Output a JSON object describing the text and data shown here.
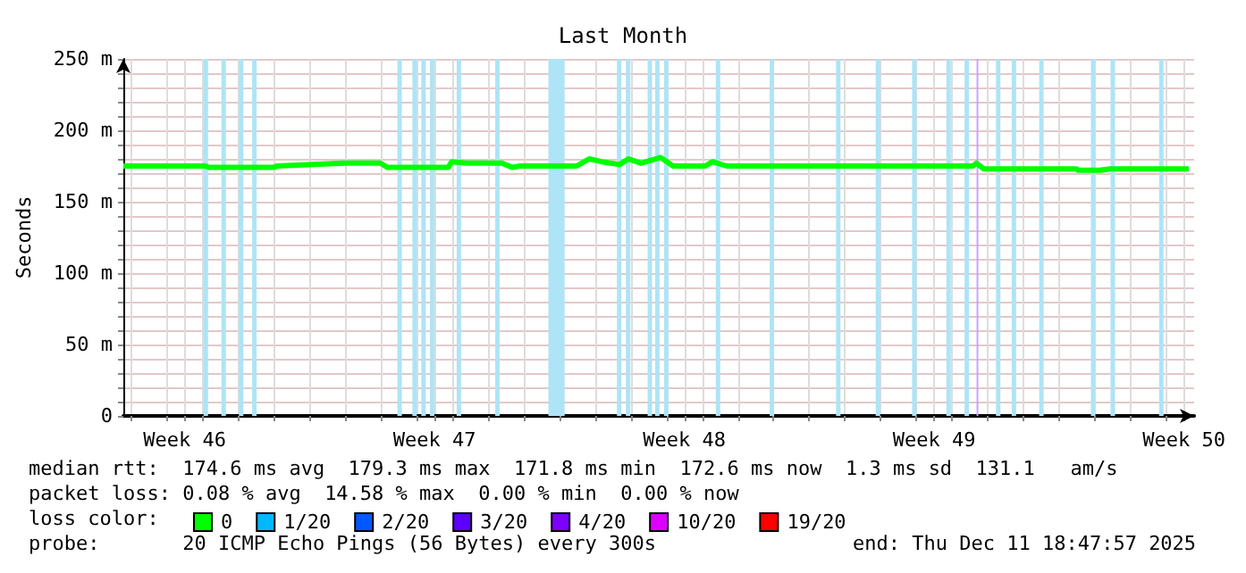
{
  "chart_data": {
    "type": "line",
    "title": "Last Month",
    "ylabel": "Seconds",
    "xlim": [
      "2025-11-11T18:48",
      "2025-12-11T18:48"
    ],
    "xticks": [
      {
        "value": "2025-11-12T00:00",
        "label": null
      },
      {
        "value": "2025-11-13T00:00",
        "label": null
      },
      {
        "value": "2025-11-13T12:00",
        "label": "Week 46"
      },
      {
        "value": "2025-11-14T00:00",
        "label": null
      },
      {
        "value": "2025-11-15T00:00",
        "label": null
      },
      {
        "value": "2025-11-16T00:00",
        "label": null
      },
      {
        "value": "2025-11-17T00:00",
        "label": null
      },
      {
        "value": "2025-11-18T00:00",
        "label": null
      },
      {
        "value": "2025-11-19T00:00",
        "label": null
      },
      {
        "value": "2025-11-20T00:00",
        "label": null
      },
      {
        "value": "2025-11-20T12:00",
        "label": "Week 47"
      },
      {
        "value": "2025-11-21T00:00",
        "label": null
      },
      {
        "value": "2025-11-22T00:00",
        "label": null
      },
      {
        "value": "2025-11-23T00:00",
        "label": null
      },
      {
        "value": "2025-11-24T00:00",
        "label": null
      },
      {
        "value": "2025-11-25T00:00",
        "label": null
      },
      {
        "value": "2025-11-26T00:00",
        "label": null
      },
      {
        "value": "2025-11-27T00:00",
        "label": null
      },
      {
        "value": "2025-11-27T12:00",
        "label": "Week 48"
      },
      {
        "value": "2025-11-28T00:00",
        "label": null
      },
      {
        "value": "2025-11-29T00:00",
        "label": null
      },
      {
        "value": "2025-11-30T00:00",
        "label": null
      },
      {
        "value": "2025-12-01T00:00",
        "label": null
      },
      {
        "value": "2025-12-02T00:00",
        "label": null
      },
      {
        "value": "2025-12-03T00:00",
        "label": null
      },
      {
        "value": "2025-12-04T00:00",
        "label": null
      },
      {
        "value": "2025-12-04T12:00",
        "label": "Week 49"
      },
      {
        "value": "2025-12-05T00:00",
        "label": null
      },
      {
        "value": "2025-12-06T00:00",
        "label": null
      },
      {
        "value": "2025-12-07T00:00",
        "label": null
      },
      {
        "value": "2025-12-08T00:00",
        "label": null
      },
      {
        "value": "2025-12-09T00:00",
        "label": null
      },
      {
        "value": "2025-12-10T00:00",
        "label": null
      },
      {
        "value": "2025-12-11T00:00",
        "label": null
      },
      {
        "value": "2025-12-11T12:00",
        "label": "Week 50"
      }
    ],
    "ylim": [
      0,
      250
    ],
    "yticks": [
      0,
      {
        "value": 10,
        "label": null
      },
      {
        "value": 20,
        "label": null
      },
      {
        "value": 30,
        "label": null
      },
      {
        "value": 40,
        "label": null
      },
      {
        "value": 50,
        "label": "50 m"
      },
      {
        "value": 60,
        "label": null
      },
      {
        "value": 70,
        "label": null
      },
      {
        "value": 80,
        "label": null
      },
      {
        "value": 90,
        "label": null
      },
      {
        "value": 100,
        "label": "100 m"
      },
      {
        "value": 110,
        "label": null
      },
      {
        "value": 120,
        "label": null
      },
      {
        "value": 130,
        "label": null
      },
      {
        "value": 140,
        "label": null
      },
      {
        "value": 150,
        "label": "150 m"
      },
      {
        "value": 160,
        "label": null
      },
      {
        "value": 170,
        "label": null
      },
      {
        "value": 180,
        "label": null
      },
      {
        "value": 190,
        "label": null
      },
      {
        "value": 200,
        "label": "200 m"
      },
      {
        "value": 210,
        "label": null
      },
      {
        "value": 220,
        "label": null
      },
      {
        "value": 230,
        "label": null
      },
      {
        "value": 240,
        "label": null
      },
      {
        "value": 250,
        "label": "250 m"
      }
    ],
    "grid": true,
    "marker": "none",
    "line_style": "solid",
    "legend": "bottom",
    "legend_title": "loss color:",
    "series": [
      {
        "name": "0",
        "color": "#00ff00",
        "x": [
          "2025-11-11T18:48",
          "2025-11-14T02:00",
          "2025-11-14T04:24",
          "2025-11-15T23:36",
          "2025-11-16T02:00",
          "2025-11-17T23:36",
          "2025-11-18T23:36",
          "2025-11-19T04:24",
          "2025-11-20T21:12",
          "2025-11-20T23:36",
          "2025-11-21T09:12",
          "2025-11-22T09:12",
          "2025-11-22T16:24",
          "2025-11-22T21:12",
          "2025-11-24T11:36",
          "2025-11-24T20:00",
          "2025-11-25T04:24",
          "2025-11-25T16:24",
          "2025-11-25T22:24",
          "2025-11-26T06:48",
          "2025-11-26T20:00",
          "2025-11-27T04:24",
          "2025-11-28T02:00",
          "2025-11-28T06:48",
          "2025-11-28T16:24",
          "2025-12-05T14:00",
          "2025-12-05T16:24",
          "2025-12-05T21:12",
          "2025-12-08T11:36",
          "2025-12-08T12:48",
          "2025-12-09T03:12",
          "2025-12-09T10:24",
          "2025-12-11T15:12"
        ],
        "values": [
          175,
          175,
          174,
          174,
          175,
          177,
          177,
          174,
          174,
          178,
          177,
          177,
          174,
          175,
          175,
          180,
          178,
          176,
          180,
          177,
          181,
          175,
          175,
          178,
          175,
          175,
          177,
          173,
          173,
          172,
          172,
          173,
          173
        ]
      },
      {
        "name": "1/20",
        "color": "#00b8ff"
      },
      {
        "name": "2/20",
        "color": "#0059ff"
      },
      {
        "name": "3/20",
        "color": "#5e00ff"
      },
      {
        "name": "4/20",
        "color": "#7e00ff"
      },
      {
        "name": "10/20",
        "color": "#dd00ff"
      },
      {
        "name": "19/20",
        "color": "#ff0000"
      }
    ],
    "bands": [
      {
        "axis": "x",
        "from": "2025-11-14T00:44",
        "to": "2025-11-14T03:44",
        "color": "#aee4f6"
      },
      {
        "axis": "x",
        "from": "2025-11-14T12:44",
        "to": "2025-11-14T15:44",
        "color": "#aee4f6"
      },
      {
        "axis": "x",
        "from": "2025-11-15T00:30",
        "to": "2025-11-15T03:30",
        "color": "#aee4f6"
      },
      {
        "axis": "x",
        "from": "2025-11-15T09:23",
        "to": "2025-11-15T12:23",
        "color": "#aee4f6"
      },
      {
        "axis": "x",
        "from": "2025-11-19T11:03",
        "to": "2025-11-19T14:03",
        "color": "#aee4f6"
      },
      {
        "axis": "x",
        "from": "2025-11-19T21:08",
        "to": "2025-11-20T00:08",
        "color": "#aee4f6"
      },
      {
        "axis": "x",
        "from": "2025-11-20T03:08",
        "to": "2025-11-20T06:08",
        "color": "#aee4f6"
      },
      {
        "axis": "x",
        "from": "2025-11-20T08:54",
        "to": "2025-11-20T11:54",
        "color": "#aee4f6"
      },
      {
        "axis": "x",
        "from": "2025-11-21T02:54",
        "to": "2025-11-21T05:54",
        "color": "#aee4f6"
      },
      {
        "axis": "x",
        "from": "2025-11-22T04:49",
        "to": "2025-11-22T07:49",
        "color": "#aee4f6"
      },
      {
        "axis": "x",
        "from": "2025-11-23T16:35",
        "to": "2025-11-24T03:30",
        "color": "#aee4f6"
      },
      {
        "axis": "x",
        "from": "2025-11-25T14:40",
        "to": "2025-11-25T17:40",
        "color": "#aee4f6"
      },
      {
        "axis": "x",
        "from": "2025-11-25T20:40",
        "to": "2025-11-25T23:40",
        "color": "#aee4f6"
      },
      {
        "axis": "x",
        "from": "2025-11-26T11:18",
        "to": "2025-11-26T14:18",
        "color": "#aee4f6"
      },
      {
        "axis": "x",
        "from": "2025-11-26T16:20",
        "to": "2025-11-26T19:20",
        "color": "#aee4f6"
      },
      {
        "axis": "x",
        "from": "2025-11-26T22:20",
        "to": "2025-11-27T01:20",
        "color": "#aee4f6"
      },
      {
        "axis": "x",
        "from": "2025-11-28T09:08",
        "to": "2025-11-28T12:08",
        "color": "#aee4f6"
      },
      {
        "axis": "x",
        "from": "2025-11-29T21:23",
        "to": "2025-11-30T00:23",
        "color": "#aee4f6"
      },
      {
        "axis": "x",
        "from": "2025-12-01T18:01",
        "to": "2025-12-01T21:01",
        "color": "#aee4f6"
      },
      {
        "axis": "x",
        "from": "2025-12-02T20:40",
        "to": "2025-12-02T23:40",
        "color": "#aee4f6"
      },
      {
        "axis": "x",
        "from": "2025-12-03T21:08",
        "to": "2025-12-04T00:08",
        "color": "#aee4f6"
      },
      {
        "axis": "x",
        "from": "2025-12-04T20:11",
        "to": "2025-12-04T23:11",
        "color": "#aee4f6"
      },
      {
        "axis": "x",
        "from": "2025-12-05T08:25",
        "to": "2025-12-05T11:25",
        "color": "#aee4f6"
      },
      {
        "axis": "x",
        "from": "2025-12-05T16:30",
        "to": "2025-12-05T17:40",
        "color": "#c8a0ff"
      },
      {
        "axis": "x",
        "from": "2025-12-06T05:32",
        "to": "2025-12-06T08:32",
        "color": "#aee4f6"
      },
      {
        "axis": "x",
        "from": "2025-12-06T16:06",
        "to": "2025-12-06T19:06",
        "color": "#aee4f6"
      },
      {
        "axis": "x",
        "from": "2025-12-07T10:35",
        "to": "2025-12-07T13:35",
        "color": "#aee4f6"
      },
      {
        "axis": "x",
        "from": "2025-12-08T21:23",
        "to": "2025-12-09T00:23",
        "color": "#aee4f6"
      },
      {
        "axis": "x",
        "from": "2025-12-09T10:35",
        "to": "2025-12-09T13:35",
        "color": "#aee4f6"
      },
      {
        "axis": "x",
        "from": "2025-12-10T19:13",
        "to": "2025-12-10T22:13",
        "color": "#aee4f6"
      }
    ],
    "annotations": [
      "median rtt:  174.6 ms avg  179.3 ms max  171.8 ms min  172.6 ms now  1.3 ms sd  131.1   am/s",
      "packet loss: 0.08 % avg  14.58 % max  0.00 % min  0.00 % now",
      "probe:       20 ICMP Echo Pings (56 Bytes) every 300s",
      "end: Thu Dec 11 18:47:57 2025"
    ]
  }
}
